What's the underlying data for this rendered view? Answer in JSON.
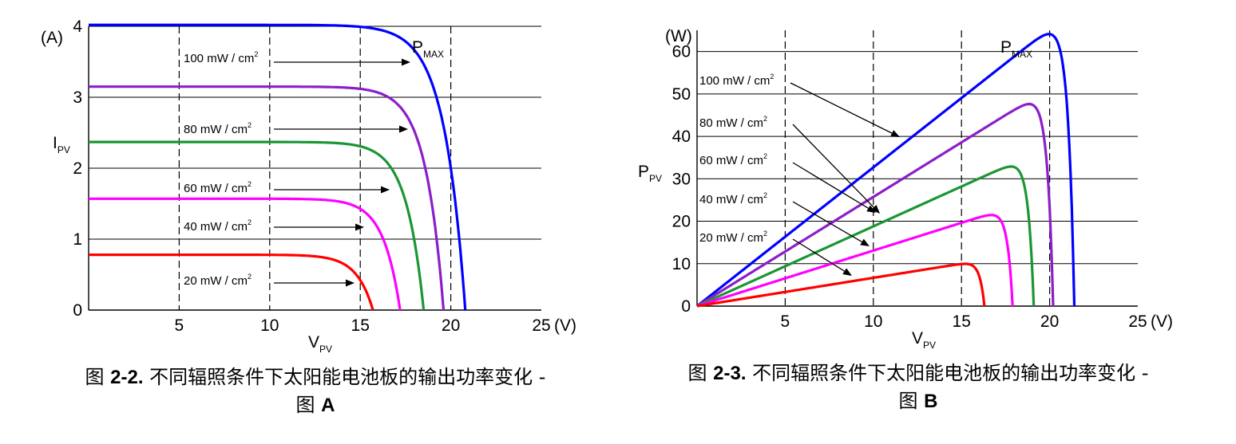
{
  "chart_data": [
    {
      "type": "line",
      "id": "A",
      "yunit": "(A)",
      "ylabel": "I",
      "ylabel_sub": "PV",
      "xlabel": "V",
      "xlabel_sub": "PV",
      "xunit": "(V)",
      "xlim": [
        0,
        25
      ],
      "ylim": [
        0,
        4
      ],
      "xticks": [
        5,
        10,
        15,
        20,
        25
      ],
      "yticks": [
        0,
        1,
        2,
        3,
        4
      ],
      "hgrid": [
        1,
        2,
        3,
        4
      ],
      "vdash": [
        5,
        10,
        15,
        20
      ],
      "pmax_label": "P",
      "pmax_sub": "MAX",
      "series": [
        {
          "name": "100 mW / cm",
          "name_sup": "2",
          "color": "#0000ff",
          "isc": 4.02,
          "voc": 20.8,
          "knee": 15.0
        },
        {
          "name": "80 mW / cm",
          "name_sup": "2",
          "color": "#8b1ec8",
          "isc": 3.15,
          "voc": 19.6,
          "knee": 14.6
        },
        {
          "name": "60 mW / cm",
          "name_sup": "2",
          "color": "#1a9634",
          "isc": 2.37,
          "voc": 18.5,
          "knee": 13.7
        },
        {
          "name": "40 mW / cm",
          "name_sup": "2",
          "color": "#ff00ff",
          "isc": 1.57,
          "voc": 17.2,
          "knee": 12.6
        },
        {
          "name": "20 mW / cm",
          "name_sup": "2",
          "color": "#ff0000",
          "isc": 0.78,
          "voc": 15.7,
          "knee": 11.2
        }
      ],
      "caption_prefix": "图 ",
      "caption_number": "2-2.",
      "caption_text": " 不同辐照条件下太阳能电池板的输出功率变化 -",
      "caption_line2_prefix": "图 ",
      "caption_line2_letter": "A"
    },
    {
      "type": "line",
      "id": "B",
      "yunit": "(W)",
      "ylabel": "P",
      "ylabel_sub": "PV",
      "xlabel": "V",
      "xlabel_sub": "PV",
      "xunit": "(V)",
      "xlim": [
        0,
        25
      ],
      "ylim": [
        0,
        65
      ],
      "xticks": [
        5,
        10,
        15,
        20,
        25
      ],
      "yticks": [
        0,
        10,
        20,
        30,
        40,
        50,
        60
      ],
      "hgrid": [
        10,
        20,
        30,
        40,
        50,
        60
      ],
      "vdash": [
        5,
        10,
        15,
        20
      ],
      "pmax_label": "P",
      "pmax_sub": "MAX",
      "series": [
        {
          "name": "100 mW / cm",
          "name_sup": "2",
          "color": "#0000ff",
          "vmp": 18.2,
          "pmp": 59.5,
          "voc": 21.4
        },
        {
          "name": "80 mW / cm",
          "name_sup": "2",
          "color": "#8b1ec8",
          "vmp": 17.3,
          "pmp": 44.5,
          "voc": 20.2
        },
        {
          "name": "60 mW / cm",
          "name_sup": "2",
          "color": "#1a9634",
          "vmp": 16.5,
          "pmp": 31.0,
          "voc": 19.1
        },
        {
          "name": "40 mW / cm",
          "name_sup": "2",
          "color": "#ff00ff",
          "vmp": 14.9,
          "pmp": 19.5,
          "voc": 17.9
        },
        {
          "name": "20 mW / cm",
          "name_sup": "2",
          "color": "#ff0000",
          "vmp": 13.2,
          "pmp": 8.8,
          "voc": 16.3
        }
      ],
      "caption_prefix": "图 ",
      "caption_number": "2-3.",
      "caption_text": " 不同辐照条件下太阳能电池板的输出功率变化 -",
      "caption_line2_prefix": "图 ",
      "caption_line2_letter": "B"
    }
  ]
}
